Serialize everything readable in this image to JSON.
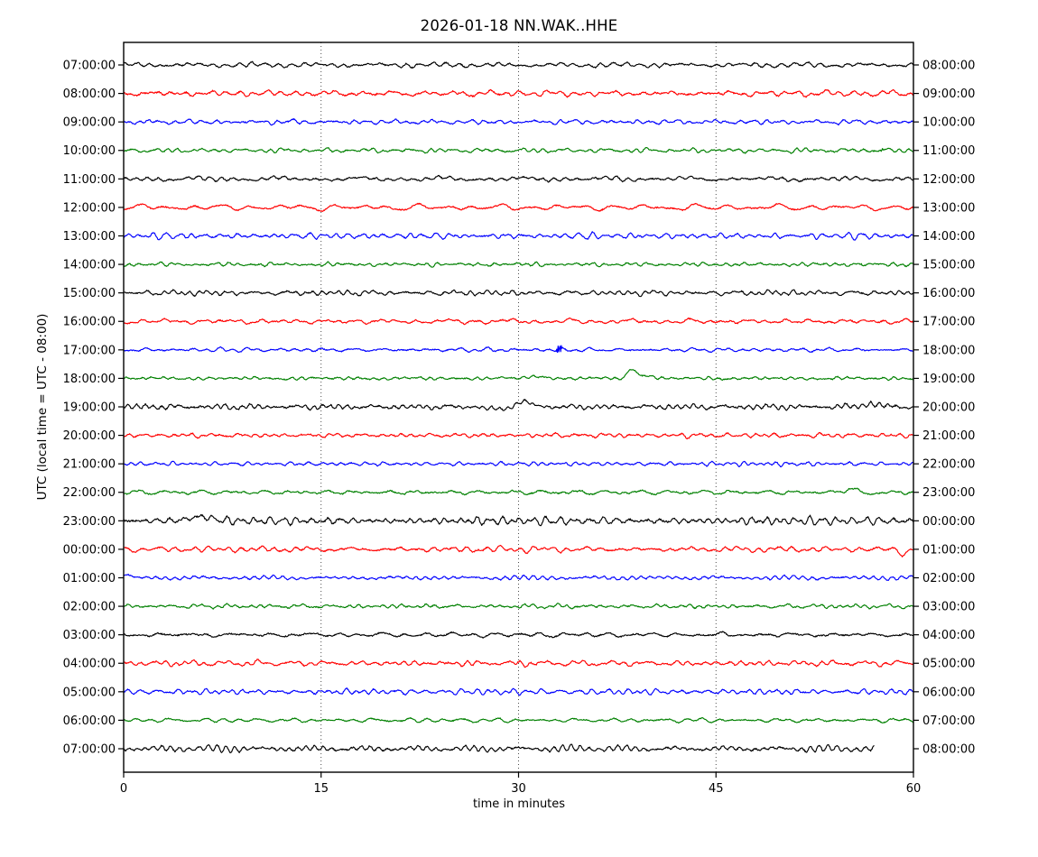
{
  "title": "2026-01-18 NN.WAK..HHE",
  "xlabel": "time in minutes",
  "ylabel": "UTC (local time = UTC - 08:00)",
  "chart_data": {
    "type": "line",
    "variant": "helicorder-dayplot",
    "x_range": [
      0,
      60
    ],
    "x_ticks": [
      "0",
      "15",
      "30",
      "45",
      "60"
    ],
    "grid_minutes": [
      15,
      30,
      45
    ],
    "grid_style": "dotted",
    "trace_color_cycle": [
      "#000000",
      "#ff0000",
      "#0000ff",
      "#008000"
    ],
    "minutes_per_row": 60,
    "rows": [
      {
        "left_label": "07:00:00",
        "right_label": "08:00:00",
        "color": "#000000",
        "noise": 1.0,
        "events": [
          {
            "type": "spike",
            "minute": 25.8,
            "amp": 2.5,
            "width": 0.1
          }
        ]
      },
      {
        "left_label": "08:00:00",
        "right_label": "09:00:00",
        "color": "#ff0000",
        "noise": 1.25,
        "events": []
      },
      {
        "left_label": "09:00:00",
        "right_label": "10:00:00",
        "color": "#0000ff",
        "noise": 1.0,
        "events": []
      },
      {
        "left_label": "10:00:00",
        "right_label": "11:00:00",
        "color": "#008000",
        "noise": 0.9,
        "events": [
          {
            "type": "spike",
            "minute": 57.6,
            "amp": 5,
            "width": 0.08
          }
        ]
      },
      {
        "left_label": "11:00:00",
        "right_label": "12:00:00",
        "color": "#000000",
        "noise": 1.1,
        "events": []
      },
      {
        "left_label": "12:00:00",
        "right_label": "13:00:00",
        "color": "#ff0000",
        "noise": 1.1,
        "events": []
      },
      {
        "left_label": "13:00:00",
        "right_label": "14:00:00",
        "color": "#0000ff",
        "noise": 1.0,
        "events": []
      },
      {
        "left_label": "14:00:00",
        "right_label": "15:00:00",
        "color": "#008000",
        "noise": 0.9,
        "events": [
          {
            "type": "spike",
            "minute": 56.0,
            "amp": 2,
            "width": 0.08
          }
        ]
      },
      {
        "left_label": "15:00:00",
        "right_label": "16:00:00",
        "color": "#000000",
        "noise": 1.0,
        "events": []
      },
      {
        "left_label": "16:00:00",
        "right_label": "17:00:00",
        "color": "#ff0000",
        "noise": 1.0,
        "events": []
      },
      {
        "left_label": "17:00:00",
        "right_label": "18:00:00",
        "color": "#0000ff",
        "noise": 0.85,
        "events": [
          {
            "type": "spike",
            "minute": 33.1,
            "amp": 8,
            "width": 0.15
          }
        ]
      },
      {
        "left_label": "18:00:00",
        "right_label": "19:00:00",
        "color": "#008000",
        "noise": 0.9,
        "events": [
          {
            "type": "bump",
            "minute": 31.3,
            "amp": 2.5,
            "width": 0.8
          },
          {
            "type": "bump",
            "minute": 38.6,
            "amp": 10,
            "width": 0.45
          },
          {
            "type": "bump",
            "minute": 39.5,
            "amp": 3,
            "width": 0.8
          }
        ]
      },
      {
        "left_label": "19:00:00",
        "right_label": "20:00:00",
        "color": "#000000",
        "noise": 1.2,
        "events": [
          {
            "type": "bump",
            "minute": 28.4,
            "amp": -3,
            "width": 0.9
          },
          {
            "type": "bump",
            "minute": 30.4,
            "amp": 5,
            "width": 0.9
          },
          {
            "type": "bump",
            "minute": 56.8,
            "amp": 2.5,
            "width": 1.2
          }
        ]
      },
      {
        "left_label": "20:00:00",
        "right_label": "21:00:00",
        "color": "#ff0000",
        "noise": 1.0,
        "events": []
      },
      {
        "left_label": "21:00:00",
        "right_label": "22:00:00",
        "color": "#0000ff",
        "noise": 0.85,
        "events": []
      },
      {
        "left_label": "22:00:00",
        "right_label": "23:00:00",
        "color": "#008000",
        "noise": 1.0,
        "events": [
          {
            "type": "bump",
            "minute": 55.3,
            "amp": 3.5,
            "width": 0.8
          },
          {
            "type": "bump",
            "minute": 56.8,
            "amp": -2,
            "width": 0.6
          }
        ]
      },
      {
        "left_label": "23:00:00",
        "right_label": "00:00:00",
        "color": "#000000",
        "noise": 1.5,
        "events": [
          {
            "type": "bump",
            "minute": 5.8,
            "amp": 4.5,
            "width": 1.2
          }
        ]
      },
      {
        "left_label": "00:00:00",
        "right_label": "01:00:00",
        "color": "#ff0000",
        "noise": 1.1,
        "events": [
          {
            "type": "bump",
            "minute": 59.2,
            "amp": -5,
            "width": 0.35
          }
        ]
      },
      {
        "left_label": "01:00:00",
        "right_label": "02:00:00",
        "color": "#0000ff",
        "noise": 0.9,
        "events": [
          {
            "type": "bump",
            "minute": 0.3,
            "amp": 3,
            "width": 0.4
          }
        ]
      },
      {
        "left_label": "02:00:00",
        "right_label": "03:00:00",
        "color": "#008000",
        "noise": 0.9,
        "events": []
      },
      {
        "left_label": "03:00:00",
        "right_label": "04:00:00",
        "color": "#000000",
        "noise": 1.1,
        "events": []
      },
      {
        "left_label": "04:00:00",
        "right_label": "05:00:00",
        "color": "#ff0000",
        "noise": 1.1,
        "events": []
      },
      {
        "left_label": "05:00:00",
        "right_label": "06:00:00",
        "color": "#0000ff",
        "noise": 1.0,
        "events": []
      },
      {
        "left_label": "06:00:00",
        "right_label": "07:00:00",
        "color": "#008000",
        "noise": 0.9,
        "events": []
      },
      {
        "left_label": "07:00:00",
        "right_label": "08:00:00",
        "color": "#000000",
        "noise": 1.2,
        "end_minute": 57,
        "events": []
      }
    ]
  }
}
